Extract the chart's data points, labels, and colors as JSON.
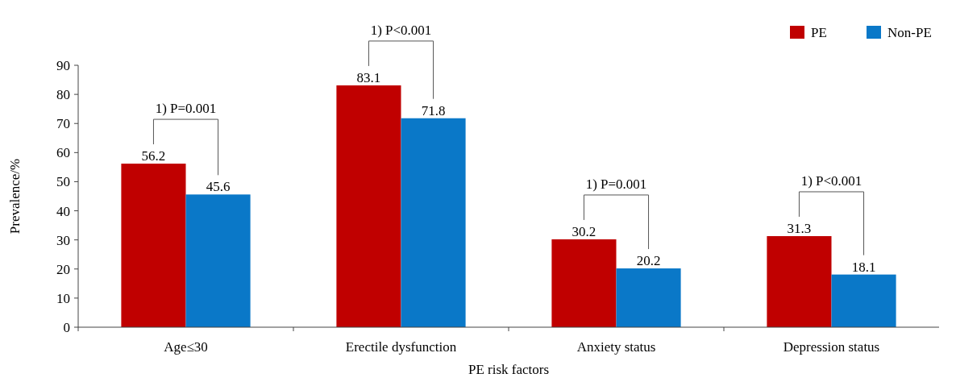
{
  "chart_data": {
    "type": "bar",
    "xlabel": "PE risk factors",
    "ylabel": "Prevalence/%",
    "categories": [
      "Age≤30",
      "Erectile dysfunction",
      "Anxiety status",
      "Depression status"
    ],
    "series": [
      {
        "name": "PE",
        "color": "#c00000",
        "values": [
          56.2,
          83.1,
          30.2,
          31.3
        ]
      },
      {
        "name": "Non-PE",
        "color": "#0a78c8",
        "values": [
          45.6,
          71.8,
          20.2,
          18.1
        ]
      }
    ],
    "ylim": [
      0,
      90
    ],
    "yticks": [
      0,
      10,
      20,
      30,
      40,
      50,
      60,
      70,
      80,
      90
    ],
    "data_labels": true,
    "legend": "top right",
    "grid": false,
    "annotations": [
      "1) P=0.001",
      "1) P<0.001",
      "1) P=0.001",
      "1) P<0.001"
    ]
  }
}
